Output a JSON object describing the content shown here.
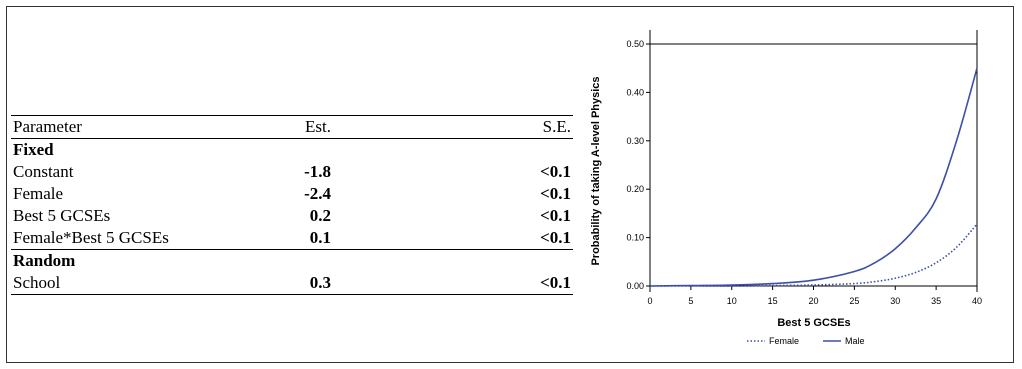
{
  "table": {
    "header": {
      "parameter": "Parameter",
      "est": "Est.",
      "se": "S.E."
    },
    "fixed_label": "Fixed",
    "fixed_rows": [
      {
        "parameter": "Constant",
        "est": "-1.8",
        "se": "<0.1"
      },
      {
        "parameter": "Female",
        "est": "-2.4",
        "se": "<0.1"
      },
      {
        "parameter": "Best 5 GCSEs",
        "est": "0.2",
        "se": "<0.1"
      },
      {
        "parameter": "Female*Best 5 GCSEs",
        "est": "0.1",
        "se": "<0.1"
      }
    ],
    "random_label": "Random",
    "random_rows": [
      {
        "parameter": "School",
        "est": "0.3",
        "se": "<0.1"
      }
    ]
  },
  "chart_data": {
    "type": "line",
    "xlabel": "Best 5 GCSEs",
    "ylabel": "Probability of taking A-level Physics",
    "xlim": [
      0,
      40
    ],
    "ylim": [
      0,
      0.5
    ],
    "xticks": [
      "0",
      "5",
      "10",
      "15",
      "20",
      "25",
      "30",
      "35",
      "40"
    ],
    "yticks": [
      "0.00",
      "0.10",
      "0.20",
      "0.30",
      "0.40",
      "0.50"
    ],
    "x": [
      0,
      5,
      10,
      15,
      20,
      25,
      27.5,
      30,
      32.5,
      35,
      37.5,
      40
    ],
    "series": [
      {
        "name": "Female",
        "style": "dotted",
        "color": "#3b4fa8",
        "values": [
          0.0,
          0.0,
          0.0,
          0.001,
          0.002,
          0.005,
          0.009,
          0.016,
          0.028,
          0.048,
          0.08,
          0.128
        ]
      },
      {
        "name": "Male",
        "style": "solid",
        "color": "#3b4fa8",
        "values": [
          0.0,
          0.001,
          0.002,
          0.005,
          0.012,
          0.03,
          0.048,
          0.077,
          0.12,
          0.18,
          0.3,
          0.45
        ]
      }
    ],
    "legend_position": "bottom",
    "grid": false
  }
}
